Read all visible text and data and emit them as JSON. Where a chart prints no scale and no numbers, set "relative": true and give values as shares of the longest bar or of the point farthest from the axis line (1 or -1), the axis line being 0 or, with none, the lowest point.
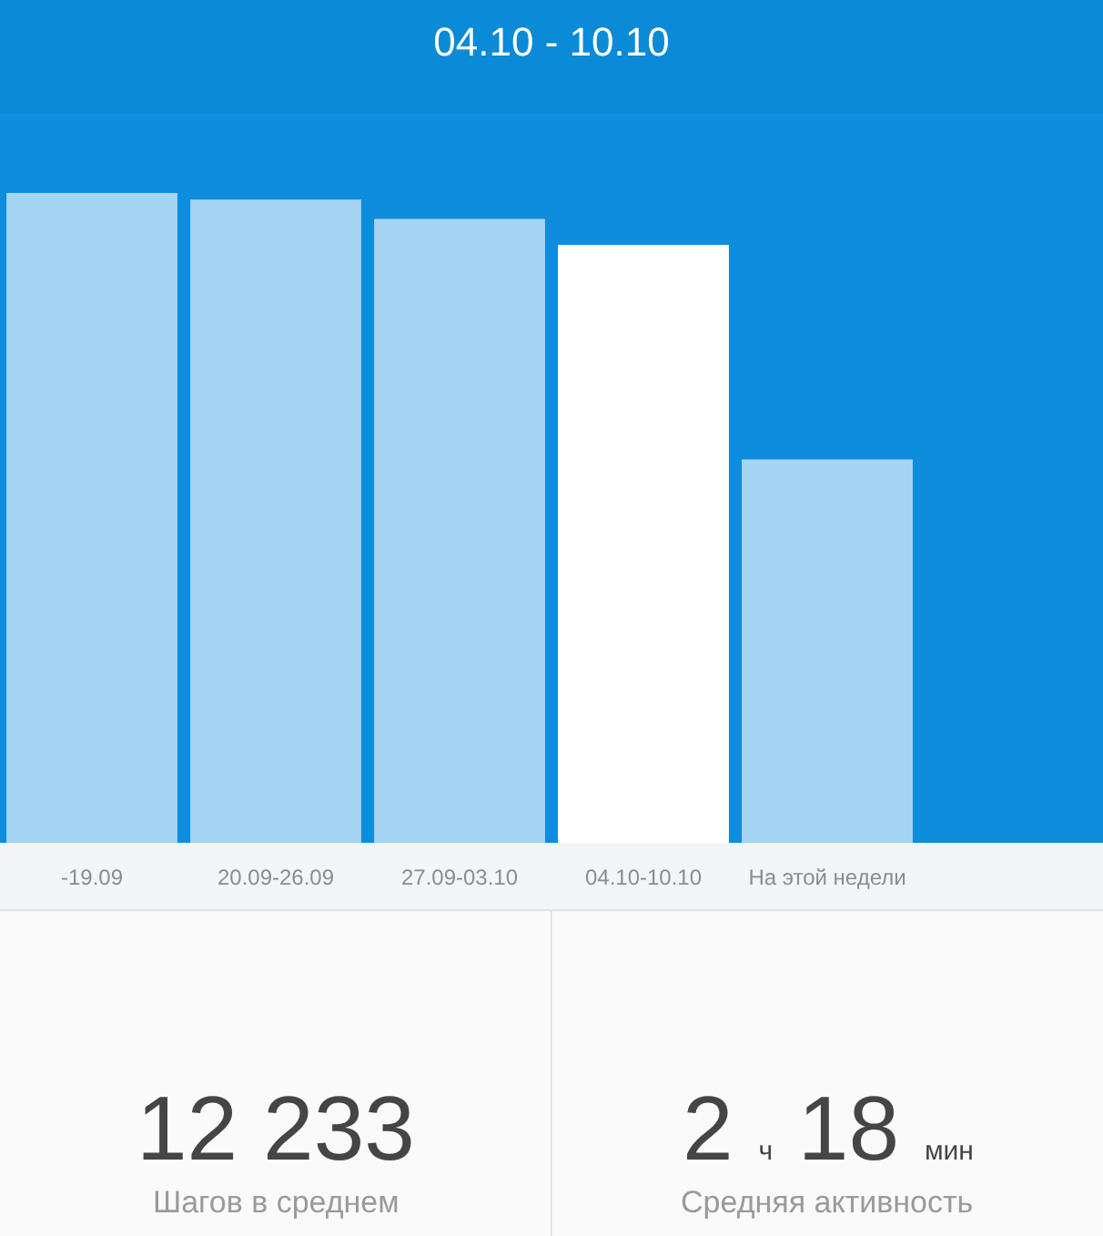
{
  "chart_data": {
    "type": "bar",
    "title": "04.10 - 10.10",
    "categories": [
      "-19.09",
      "20.09-26.09",
      "27.09-03.10",
      "04.10-10.10",
      "На этой недели"
    ],
    "values": [
      1,
      0.99,
      0.96,
      0.92,
      0.59
    ],
    "relative": true,
    "colors": [
      "#a5d4f2",
      "#a5d4f2",
      "#a5d4f2",
      "#ffffff",
      "#a5d4f2"
    ],
    "grid": false,
    "annotations": [
      "12 233",
      "Шагов в среднем",
      "2 ч 18 мин",
      "Средняя активность"
    ]
  }
}
